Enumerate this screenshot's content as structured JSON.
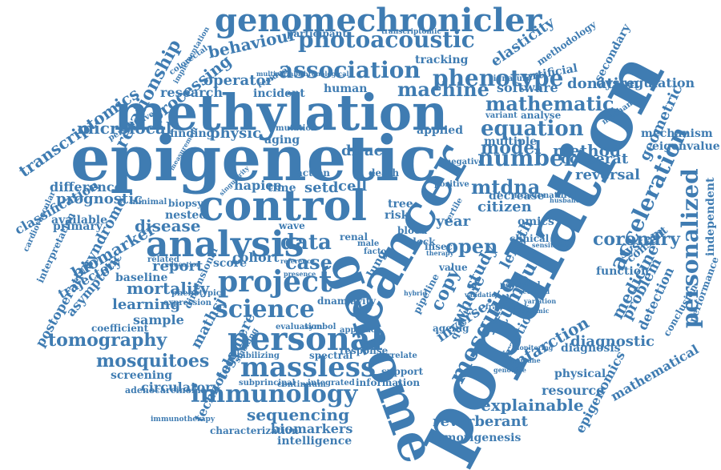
{
  "color": "#3f7cb2",
  "words": [
    "genomechronicler",
    "methylation",
    "epigenetic",
    "population",
    "cancer",
    "genome",
    "control",
    "analysis",
    "personal",
    "project",
    "science",
    "massless",
    "immunology",
    "photoacoustic",
    "association",
    "phenotype",
    "machine",
    "mathematic",
    "equation",
    "number",
    "model",
    "method",
    "acceleration",
    "personalized",
    "mosquito",
    "tumour",
    "mtdna",
    "data",
    "case",
    "open",
    "copy",
    "study",
    "whole",
    "length",
    "medicine",
    "coronary",
    "problem",
    "detection",
    "diagnostic",
    "infarction",
    "fraction",
    "explainable",
    "reverberant",
    "tumorigenesis",
    "sequencing",
    "biomarkers",
    "intelligence",
    "mosquitoes",
    "tomography",
    "learning",
    "mortality",
    "report",
    "cohort",
    "disease",
    "biomarker",
    "prognostic",
    "classification",
    "transcriptomics",
    "relationship",
    "processing",
    "microlocal",
    "behaviour",
    "operator",
    "research",
    "difference",
    "syndrome",
    "trajectory",
    "asymptotic",
    "postoperative",
    "sample",
    "telomere",
    "mathsj",
    "technology",
    "circulatory",
    "screening",
    "adenocarcinoma",
    "immunotherapy",
    "characterization",
    "information",
    "support",
    "response",
    "spectral",
    "evaluation",
    "symbol",
    "subprincipal",
    "continuum",
    "integrated",
    "smoking",
    "stabilizing",
    "dnam",
    "cavity",
    "inverse",
    "quality",
    "year",
    "citizen",
    "reversal",
    "cosserat",
    "ageing",
    "approach",
    "correlate",
    "pipeline",
    "value",
    "lung",
    "blood",
    "clock",
    "insect",
    "renal",
    "male",
    "factor",
    "score",
    "wave",
    "time",
    "setd",
    "cell",
    "hapiee",
    "dirac",
    "physic",
    "finding",
    "biopsy",
    "nested",
    "baseline",
    "coefficient",
    "available",
    "primary",
    "interpretation",
    "cardiovascular",
    "mechanism",
    "eigenvalue",
    "geometric",
    "secondary",
    "dysregulation",
    "donation",
    "software",
    "elasticity",
    "artificial",
    "methodology",
    "tracking",
    "participant",
    "transcriptomic",
    "multivariable",
    "chronological",
    "human",
    "incident",
    "residual",
    "aging",
    "mutation",
    "applied",
    "analyse",
    "variant",
    "multiple",
    "signature",
    "system",
    "consent",
    "independent",
    "performance",
    "conclusion",
    "function",
    "diagnosis",
    "resource",
    "physical",
    "mathematical",
    "epigenomics",
    "potential",
    "decrease",
    "natural",
    "clinical",
    "omics",
    "tertile",
    "related",
    "phenotypic",
    "expression",
    "dimensional",
    "death",
    "tree",
    "risk",
    "action",
    "colorectal",
    "perspective",
    "implementation",
    "minimal",
    "singularity",
    "measurement",
    "positive",
    "negative",
    "sensitivity",
    "genotype",
    "immune",
    "framework",
    "variation",
    "proteomic",
    "mechanic",
    "secreted",
    "accuracy",
    "husband",
    "therapy",
    "hybrid",
    "validation",
    "monitoring",
    "presence",
    "reference",
    "education"
  ]
}
